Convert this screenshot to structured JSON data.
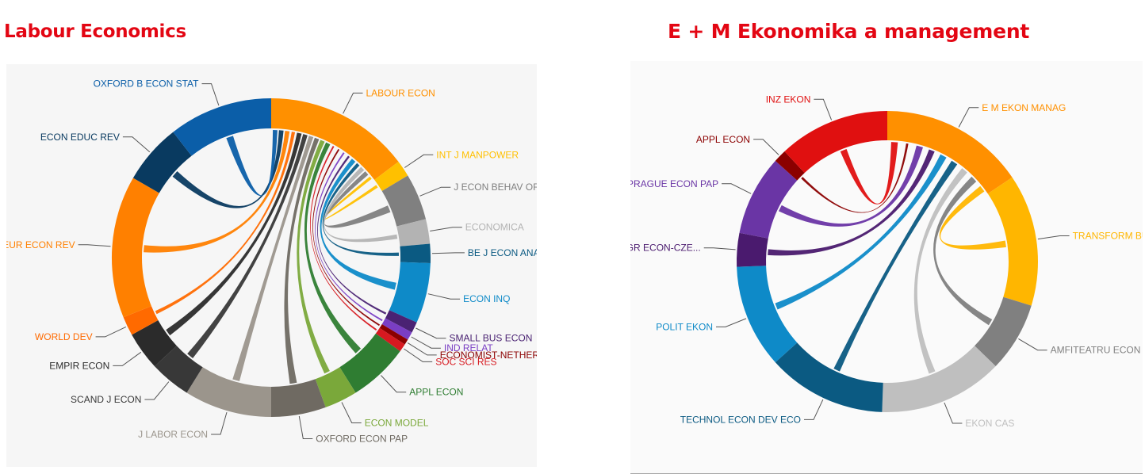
{
  "titles": {
    "left": "Labour Economics",
    "right": "E + M Ekonomika a management"
  },
  "chart_data": [
    {
      "type": "chord",
      "title": "Labour Economics",
      "focal": "LABOUR ECON",
      "segments": [
        {
          "name": "LABOUR ECON",
          "color": "#ff9000",
          "start": 0,
          "end": 53
        },
        {
          "name": "INT J MANPOWER",
          "color": "#ffc000",
          "start": 53,
          "end": 59
        },
        {
          "name": "J ECON BEHAV ORGAN",
          "color": "#808080",
          "start": 59,
          "end": 76
        },
        {
          "name": "ECONOMICA",
          "color": "#b3b3b3",
          "start": 76,
          "end": 85
        },
        {
          "name": "BE J ECON ANA...",
          "color": "#0b5a82",
          "start": 85,
          "end": 92
        },
        {
          "name": "ECON INQ",
          "color": "#0e8ac8",
          "start": 92,
          "end": 114
        },
        {
          "name": "SMALL BUS ECON",
          "color": "#4a2273",
          "start": 114,
          "end": 118
        },
        {
          "name": "IND RELAT",
          "color": "#7a3ec4",
          "start": 118,
          "end": 121
        },
        {
          "name": "ECONOMIST-NETHER...",
          "color": "#8b0000",
          "start": 121,
          "end": 123
        },
        {
          "name": "SOC SCI RES",
          "color": "#d71920",
          "start": 123,
          "end": 126
        },
        {
          "name": "APPL ECON",
          "color": "#2f7d32",
          "start": 126,
          "end": 148
        },
        {
          "name": "ECON MODEL",
          "color": "#7aa83a",
          "start": 148,
          "end": 160
        },
        {
          "name": "OXFORD ECON PAP",
          "color": "#6f6a62",
          "start": 160,
          "end": 180
        },
        {
          "name": "J LABOR ECON",
          "color": "#9b958c",
          "start": 180,
          "end": 212
        },
        {
          "name": "SCAND J ECON",
          "color": "#383838",
          "start": 212,
          "end": 227
        },
        {
          "name": "EMPIR ECON",
          "color": "#2b2b2b",
          "start": 227,
          "end": 241
        },
        {
          "name": "WORLD DEV",
          "color": "#ff6a00",
          "start": 241,
          "end": 248
        },
        {
          "name": "EUR ECON REV",
          "color": "#ff8000",
          "start": 248,
          "end": 300
        },
        {
          "name": "ECON EDUC REV",
          "color": "#093a60",
          "start": 300,
          "end": 322
        },
        {
          "name": "OXFORD B ECON STAT",
          "color": "#0b5ea8",
          "start": 322,
          "end": 360
        }
      ]
    },
    {
      "type": "chord",
      "title": "E + M Ekonomika a management",
      "focal": "E M EKON MANAG",
      "segments": [
        {
          "name": "E M EKON MANAG",
          "color": "#ff9000",
          "start": 0,
          "end": 56
        },
        {
          "name": "TRANSFORM BU...",
          "color": "#ffb600",
          "start": 56,
          "end": 107
        },
        {
          "name": "AMFITEATRU ECON",
          "color": "#808080",
          "start": 107,
          "end": 134
        },
        {
          "name": "EKON CAS",
          "color": "#bfbfbf",
          "start": 134,
          "end": 182
        },
        {
          "name": "TECHNOL ECON DEV ECO",
          "color": "#0b5a82",
          "start": 182,
          "end": 228
        },
        {
          "name": "POLIT EKON",
          "color": "#0e8ac8",
          "start": 228,
          "end": 268
        },
        {
          "name": "AGR ECON-CZE...",
          "color": "#4a1a6e",
          "start": 268,
          "end": 281
        },
        {
          "name": "PRAGUE ECON PAP",
          "color": "#6a35a5",
          "start": 281,
          "end": 312
        },
        {
          "name": "APPL ECON",
          "color": "#8b0000",
          "start": 312,
          "end": 317
        },
        {
          "name": "INZ EKON",
          "color": "#e01010",
          "start": 317,
          "end": 360
        }
      ]
    }
  ]
}
